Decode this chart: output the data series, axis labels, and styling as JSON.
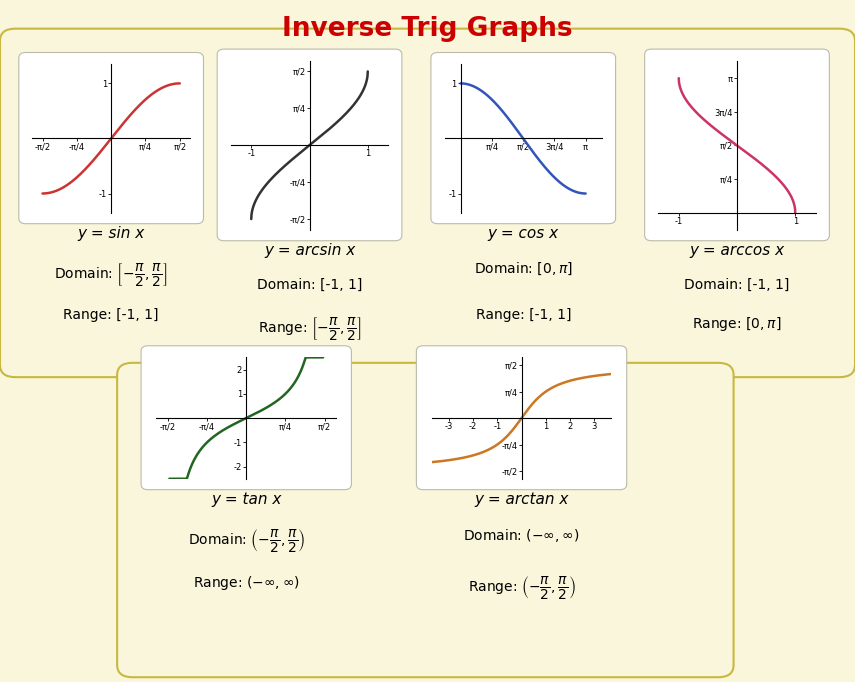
{
  "title": "Inverse Trig Graphs",
  "title_color": "#CC0000",
  "outer_bg": "#E0E0EC",
  "panel_bg": "#FAF6DC",
  "plot_bg": "white",
  "plots": [
    {
      "func": "sin",
      "color": "#CC3333",
      "xlim": [
        -1.8,
        1.8
      ],
      "ylim": [
        -1.35,
        1.35
      ],
      "xticks": [
        -1.5708,
        -0.7854,
        0.0001,
        0.7854,
        1.5708
      ],
      "xtick_labels": [
        "-π/2",
        "-π/4",
        "",
        "π/4",
        "π/2"
      ],
      "yticks": [
        -1,
        0.0001,
        1
      ],
      "ytick_labels": [
        "-1",
        "",
        "1"
      ],
      "label": "y = sin x",
      "domain_plain": "Domain:",
      "domain_math": "$\\left[-\\dfrac{\\pi}{2},\\dfrac{\\pi}{2}\\right]$",
      "range_plain": "Range: [-1, 1]",
      "range_math": ""
    },
    {
      "func": "arcsin",
      "color": "#333333",
      "xlim": [
        -1.35,
        1.35
      ],
      "ylim": [
        -1.8,
        1.8
      ],
      "xticks": [
        -1,
        0.0001,
        1
      ],
      "xtick_labels": [
        "-1",
        "",
        "1"
      ],
      "yticks": [
        -1.5708,
        -0.7854,
        0.0001,
        0.7854,
        1.5708
      ],
      "ytick_labels": [
        "-π/2",
        "-π/4",
        "",
        "π/4",
        "π/2"
      ],
      "label": "y = arcsin x",
      "domain_plain": "Domain: [-1, 1]",
      "domain_math": "",
      "range_plain": "Range:",
      "range_math": "$\\left[-\\dfrac{\\pi}{2},\\dfrac{\\pi}{2}\\right]$"
    },
    {
      "func": "cos",
      "color": "#3355BB",
      "xlim": [
        -0.4,
        3.55
      ],
      "ylim": [
        -1.35,
        1.35
      ],
      "xticks": [
        0.0001,
        0.7854,
        1.5708,
        2.3562,
        3.1416
      ],
      "xtick_labels": [
        "",
        "π/4",
        "π/2",
        "3π/4",
        "π"
      ],
      "yticks": [
        -1,
        0.0001,
        1
      ],
      "ytick_labels": [
        "-1",
        "",
        "1"
      ],
      "label": "y = cos x",
      "domain_plain": "Domain:",
      "domain_math": "$[0, \\pi]$",
      "range_plain": "Range: [-1, 1]",
      "range_math": ""
    },
    {
      "func": "arccos",
      "color": "#CC3366",
      "xlim": [
        -1.35,
        1.35
      ],
      "ylim": [
        -0.4,
        3.55
      ],
      "xticks": [
        -1,
        0.0001,
        1
      ],
      "xtick_labels": [
        "-1",
        "",
        "1"
      ],
      "yticks": [
        0.0001,
        0.7854,
        1.5708,
        2.3562,
        3.1416
      ],
      "ytick_labels": [
        "",
        "π/4",
        "π/2",
        "3π/4",
        "π"
      ],
      "label": "y = arccos x",
      "domain_plain": "Domain: [-1, 1]",
      "domain_math": "",
      "range_plain": "Range:",
      "range_math": "$[0, \\pi]$"
    },
    {
      "func": "tan",
      "color": "#226622",
      "xlim": [
        -1.8,
        1.8
      ],
      "ylim": [
        -2.5,
        2.5
      ],
      "xticks": [
        -1.5708,
        -0.7854,
        0.0001,
        0.7854,
        1.5708
      ],
      "xtick_labels": [
        "-π/2",
        "-π/4",
        "",
        "π/4",
        "π/2"
      ],
      "yticks": [
        -2,
        -1,
        0.0001,
        1,
        2
      ],
      "ytick_labels": [
        "-2",
        "-1",
        "",
        "1",
        "2"
      ],
      "label": "y = tan x",
      "domain_plain": "Domain:",
      "domain_math": "$\\left(-\\dfrac{\\pi}{2},\\dfrac{\\pi}{2}\\right)$",
      "range_plain": "Range:",
      "range_math": "$(-\\infty,\\infty)$"
    },
    {
      "func": "arctan",
      "color": "#CC7722",
      "xlim": [
        -3.7,
        3.7
      ],
      "ylim": [
        -1.8,
        1.8
      ],
      "xticks": [
        -3,
        -2,
        -1,
        0.0001,
        1,
        2,
        3
      ],
      "xtick_labels": [
        "-3",
        "-2",
        "-1",
        "",
        "1",
        "2",
        "3"
      ],
      "yticks": [
        -1.5708,
        -0.7854,
        0.0001,
        0.7854,
        1.5708
      ],
      "ytick_labels": [
        "-π/2",
        "-π/4",
        "",
        "π/4",
        "π/2"
      ],
      "label": "y = arctan x",
      "domain_plain": "Domain:",
      "domain_math": "$(-\\infty,\\infty)$",
      "range_plain": "Range:",
      "range_math": "$\\left(-\\dfrac{\\pi}{2},\\dfrac{\\pi}{2}\\right)$"
    }
  ]
}
